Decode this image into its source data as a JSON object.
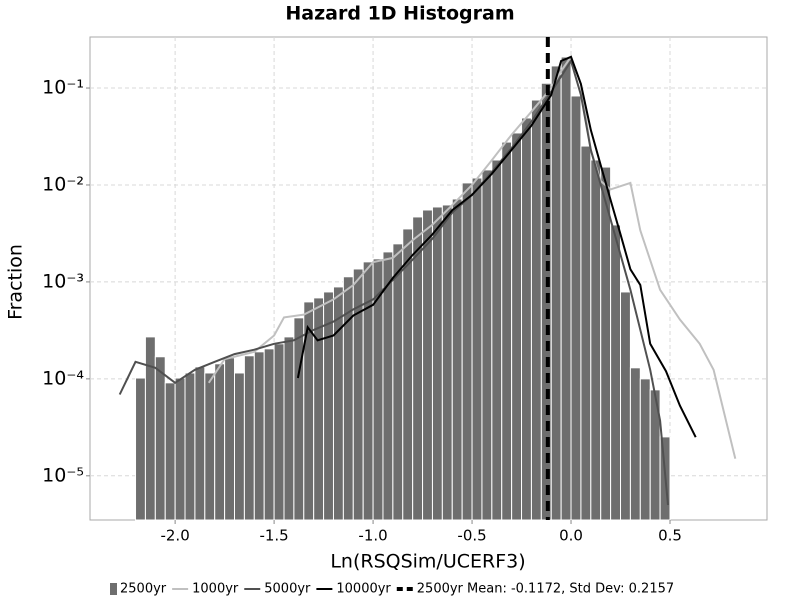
{
  "chart_data": {
    "type": "histogram",
    "title": "Hazard 1D Histogram",
    "x_label": "Ln(RSQSim/UCERF3)",
    "y_label": "Fraction",
    "log_y": true,
    "grid": true,
    "legend_position": "bottom",
    "xlim": [
      -2.43,
      0.99
    ],
    "ylim": [
      3.5e-06,
      0.336
    ],
    "xticks": [
      {
        "value": -2,
        "label": "-2.0"
      },
      -1.5,
      {
        "value": -1,
        "label": "-1.0"
      },
      -0.5,
      {
        "value": 0,
        "label": "0.0"
      },
      0.5
    ],
    "yticks": [
      {
        "value": 1e-05,
        "label": "10⁻⁵"
      },
      {
        "value": 0.0001,
        "label": "10⁻⁴"
      },
      {
        "value": 0.001,
        "label": "10⁻³"
      },
      {
        "value": 0.01,
        "label": "10⁻²"
      },
      {
        "value": 0.1,
        "label": "10⁻¹"
      }
    ],
    "bins": [
      -2.2,
      -2.15,
      -2.1,
      -2.05,
      -2.0,
      -1.95,
      -1.9,
      -1.85,
      -1.8,
      -1.75,
      -1.7,
      -1.65,
      -1.6,
      -1.55,
      -1.5,
      -1.45,
      -1.4,
      -1.35,
      -1.3,
      -1.25,
      -1.2,
      -1.15,
      -1.1,
      -1.05,
      -1.0,
      -0.95,
      -0.9,
      -0.85,
      -0.8,
      -0.75,
      -0.7,
      -0.65,
      -0.6,
      -0.55,
      -0.5,
      -0.45,
      -0.4,
      -0.35,
      -0.3,
      -0.25,
      -0.2,
      -0.15,
      -0.1,
      -0.05,
      0,
      0.05,
      0.1,
      0.15,
      0.2,
      0.25,
      0.3,
      0.35,
      0.4,
      0.45,
      0.5
    ],
    "series": [
      {
        "name": "2500yr",
        "type": "histogram",
        "color": "#6e6e6e",
        "values": [
          0.000102,
          0.000271,
          0.000169,
          9.1e-05,
          0.000102,
          0.000115,
          0.000133,
          0.000115,
          0.000143,
          0.000165,
          0.000115,
          0.000173,
          0.00019,
          0.000204,
          0.00023,
          0.000271,
          0.000426,
          0.000622,
          0.000684,
          0.000788,
          0.000888,
          0.00113,
          0.00136,
          0.00161,
          0.00173,
          0.00204,
          0.00247,
          0.00352,
          0.00468,
          0.00552,
          0.00593,
          0.00622,
          0.00717,
          0.0105,
          0.0118,
          0.0143,
          0.0181,
          0.0277,
          0.0344,
          0.0491,
          0.0752,
          0.112,
          0.169,
          0.209,
          0.0828,
          0.0252,
          0.0181,
          0.0153,
          0.00387,
          0.000788,
          0.00013,
          0.0001,
          7.7e-05,
          2.52e-05
        ]
      },
      {
        "name": "1000yr",
        "type": "line",
        "color": "#c0c0c0",
        "x": [
          -1.83,
          -1.75,
          -1.6,
          -1.5,
          -1.45,
          -1.35,
          -1.2,
          -1.1,
          -1.0,
          -0.9,
          -0.8,
          -0.7,
          -0.6,
          -0.5,
          -0.4,
          -0.3,
          -0.2,
          -0.1,
          -0.05,
          0,
          0.05,
          0.1,
          0.15,
          0.2,
          0.3,
          0.35,
          0.45,
          0.55,
          0.65,
          0.72,
          0.83
        ],
        "values": [
          9.1e-05,
          0.00016,
          0.00019,
          0.00028,
          0.00043,
          0.00046,
          0.00066,
          0.00093,
          0.0016,
          0.00177,
          0.0027,
          0.0039,
          0.0062,
          0.01,
          0.018,
          0.033,
          0.057,
          0.1,
          0.15,
          0.21,
          0.11,
          0.023,
          0.011,
          0.009,
          0.0105,
          0.0034,
          0.00083,
          0.00041,
          0.00023,
          0.000124,
          1.5e-05
        ]
      },
      {
        "name": "5000yr",
        "type": "line",
        "color": "#505050",
        "x": [
          -2.28,
          -2.2,
          -2.1,
          -2.0,
          -1.9,
          -1.8,
          -1.7,
          -1.6,
          -1.5,
          -1.4,
          -1.3,
          -1.2,
          -1.1,
          -1.0,
          -0.9,
          -0.8,
          -0.7,
          -0.6,
          -0.5,
          -0.4,
          -0.3,
          -0.2,
          -0.1,
          0,
          0.05,
          0.1,
          0.2,
          0.3,
          0.4,
          0.45,
          0.49
        ],
        "values": [
          6.9e-05,
          0.00015,
          0.00013,
          9.1e-05,
          0.000124,
          0.00015,
          0.00018,
          0.0002,
          0.00023,
          0.00025,
          0.00032,
          0.00039,
          0.00052,
          0.00066,
          0.00105,
          0.0017,
          0.0028,
          0.0052,
          0.0079,
          0.0136,
          0.024,
          0.045,
          0.091,
          0.19,
          0.085,
          0.023,
          0.0044,
          0.00083,
          0.000124,
          3.7e-05,
          5e-06
        ]
      },
      {
        "name": "10000yr",
        "type": "line",
        "color": "#000000",
        "x": [
          -1.38,
          -1.33,
          -1.28,
          -1.2,
          -1.1,
          -1.0,
          -0.9,
          -0.8,
          -0.7,
          -0.6,
          -0.5,
          -0.4,
          -0.3,
          -0.2,
          -0.1,
          -0.05,
          0,
          0.05,
          0.1,
          0.15,
          0.2,
          0.25,
          0.3,
          0.35,
          0.4,
          0.48,
          0.55,
          0.63
        ],
        "values": [
          0.000102,
          0.00034,
          0.00025,
          0.00028,
          0.00045,
          0.00058,
          0.0011,
          0.0019,
          0.0031,
          0.0055,
          0.0079,
          0.013,
          0.023,
          0.041,
          0.085,
          0.19,
          0.21,
          0.11,
          0.037,
          0.016,
          0.007,
          0.0031,
          0.00135,
          0.00093,
          0.00023,
          0.00012,
          5.3e-05,
          2.5e-05
        ]
      }
    ],
    "mean_line": {
      "name": "2500yr Mean: -0.1172, Std Dev: 0.2157",
      "x": -0.1172,
      "color": "#000000"
    }
  }
}
